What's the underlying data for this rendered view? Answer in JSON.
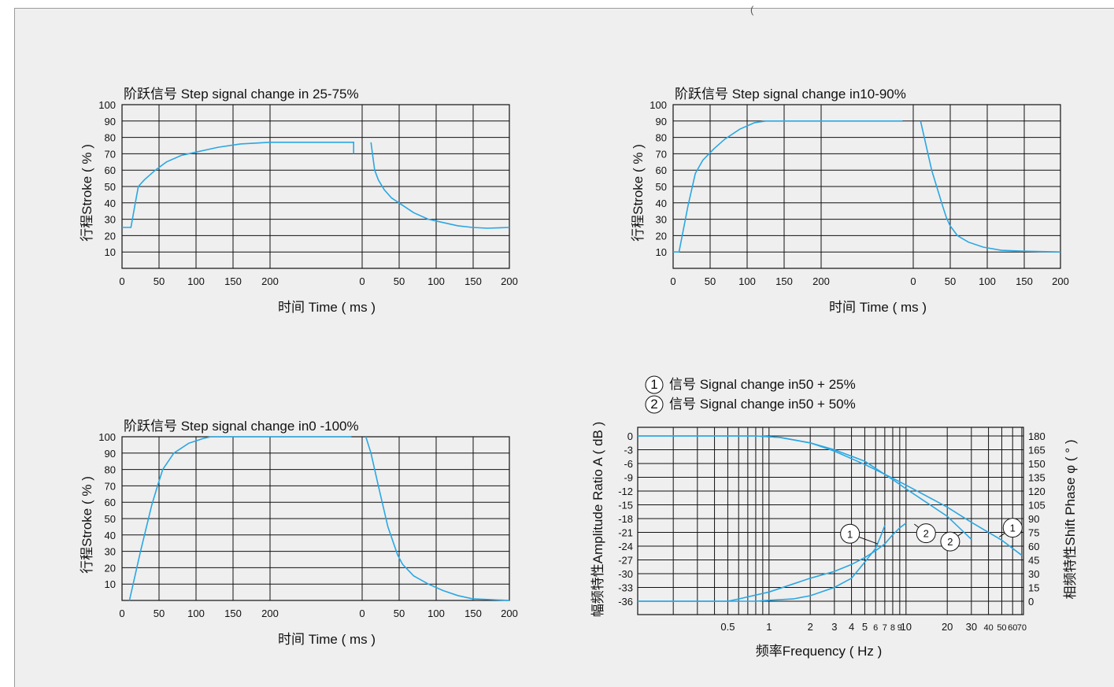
{
  "header_fragment": "(",
  "chart_data": [
    {
      "type": "line",
      "title": "阶跃信号 Step signal change in 25-75%",
      "xlabel": "时间 Time ( ms )",
      "ylabel": "行程Stroke ( % )",
      "ylim": [
        0,
        100
      ],
      "ytick_labels": [
        "10",
        "20",
        "30",
        "40",
        "50",
        "60",
        "70",
        "80",
        "90",
        "100"
      ],
      "xtick_labels": [
        "0",
        "50",
        "100",
        "150",
        "200",
        "0",
        "50",
        "100",
        "150",
        "200"
      ],
      "x_segments": [
        [
          0,
          200
        ],
        [
          0,
          200
        ]
      ],
      "grid": true,
      "series": [
        {
          "segment": 0,
          "points": [
            [
              0,
              25
            ],
            [
              12,
              25
            ],
            [
              18,
              40
            ],
            [
              22,
              50
            ],
            [
              30,
              54
            ],
            [
              45,
              60
            ],
            [
              60,
              65
            ],
            [
              80,
              69
            ],
            [
              100,
              71
            ],
            [
              130,
              74
            ],
            [
              160,
              76
            ],
            [
              200,
              77
            ],
            [
              300,
              77
            ],
            [
              313,
              77
            ],
            [
              313,
              70
            ]
          ]
        },
        {
          "segment": 1,
          "points": [
            [
              12,
              77
            ],
            [
              14,
              70
            ],
            [
              17,
              60
            ],
            [
              22,
              54
            ],
            [
              30,
              48
            ],
            [
              40,
              43
            ],
            [
              50,
              40
            ],
            [
              70,
              34
            ],
            [
              90,
              30
            ],
            [
              110,
              28
            ],
            [
              130,
              26
            ],
            [
              150,
              25
            ],
            [
              170,
              24.5
            ],
            [
              200,
              25
            ]
          ]
        }
      ]
    },
    {
      "type": "line",
      "title": "阶跃信号 Step signal change in10-90%",
      "xlabel": "时间 Time ( ms )",
      "ylabel": "行程Stroke ( % )",
      "ylim": [
        0,
        100
      ],
      "ytick_labels": [
        "10",
        "20",
        "30",
        "40",
        "50",
        "60",
        "70",
        "80",
        "90",
        "100"
      ],
      "xtick_labels": [
        "0",
        "50",
        "100",
        "150",
        "200",
        "0",
        "50",
        "100",
        "150",
        "200"
      ],
      "x_segments": [
        [
          0,
          200
        ],
        [
          0,
          200
        ]
      ],
      "grid": true,
      "series": [
        {
          "segment": 0,
          "points": [
            [
              0,
              10
            ],
            [
              8,
              10
            ],
            [
              20,
              38
            ],
            [
              30,
              58
            ],
            [
              40,
              66
            ],
            [
              55,
              73
            ],
            [
              70,
              79
            ],
            [
              90,
              85
            ],
            [
              110,
              89
            ],
            [
              125,
              90
            ],
            [
              200,
              90
            ],
            [
              300,
              90
            ],
            [
              310,
              90
            ]
          ]
        },
        {
          "segment": 1,
          "points": [
            [
              10,
              90
            ],
            [
              15,
              80
            ],
            [
              25,
              60
            ],
            [
              40,
              38
            ],
            [
              45,
              31
            ],
            [
              50,
              26
            ],
            [
              60,
              20
            ],
            [
              75,
              16
            ],
            [
              95,
              13
            ],
            [
              120,
              11
            ],
            [
              150,
              10.5
            ],
            [
              200,
              10
            ]
          ]
        }
      ]
    },
    {
      "type": "line",
      "title": "阶跃信号 Step signal change in0 -100%",
      "xlabel": "时间 Time ( ms )",
      "ylabel": "行程Stroke ( % )",
      "ylim": [
        0,
        100
      ],
      "ytick_labels": [
        "10",
        "20",
        "30",
        "40",
        "50",
        "60",
        "70",
        "80",
        "90",
        "100"
      ],
      "xtick_labels": [
        "0",
        "50",
        "100",
        "150",
        "200",
        "0",
        "50",
        "100",
        "150",
        "200"
      ],
      "x_segments": [
        [
          0,
          200
        ],
        [
          0,
          200
        ]
      ],
      "grid": true,
      "series": [
        {
          "segment": 0,
          "points": [
            [
              10,
              0
            ],
            [
              25,
              30
            ],
            [
              40,
              58
            ],
            [
              48,
              70
            ],
            [
              55,
              80
            ],
            [
              70,
              90
            ],
            [
              90,
              96
            ],
            [
              110,
              99
            ],
            [
              120,
              100
            ],
            [
              200,
              100
            ],
            [
              300,
              100
            ],
            [
              310,
              100
            ]
          ]
        },
        {
          "segment": 1,
          "points": [
            [
              5,
              100
            ],
            [
              12,
              90
            ],
            [
              22,
              70
            ],
            [
              35,
              45
            ],
            [
              48,
              28
            ],
            [
              55,
              22
            ],
            [
              70,
              15
            ],
            [
              90,
              10
            ],
            [
              110,
              6
            ],
            [
              130,
              3
            ],
            [
              150,
              1
            ],
            [
              200,
              0
            ]
          ]
        }
      ]
    },
    {
      "type": "line",
      "legend": [
        "信号 Signal change in50 + 25%",
        "信号 Signal change in50 + 50%"
      ],
      "legend_markers": [
        "1",
        "2"
      ],
      "xlabel": "频率Frequency ( Hz )",
      "ylabel_left": "幅频特性Amplitude Ratio A ( dB )",
      "ylabel_right": "相频特性Shift Phase φ ( ° )",
      "x_scale": "log",
      "xlim": [
        0.11,
        72
      ],
      "xtick_labels": [
        "0.5",
        "1",
        "2",
        "3",
        "4",
        "5",
        "6",
        "7",
        "8",
        "9",
        "10",
        "20",
        "30",
        "40",
        "50",
        "60",
        "70"
      ],
      "xtick_values": [
        0.5,
        1,
        2,
        3,
        4,
        5,
        6,
        7,
        8,
        9,
        10,
        20,
        30,
        40,
        50,
        60,
        70
      ],
      "ylim_left": [
        -39,
        0
      ],
      "ytick_labels_left": [
        "0",
        "-3",
        "-6",
        "-9",
        "-12",
        "-15",
        "-18",
        "-21",
        "-24",
        "-27",
        "-30",
        "-33",
        "-36"
      ],
      "ytick_labels_right": [
        "180",
        "165",
        "150",
        "135",
        "120",
        "105",
        "90",
        "75",
        "60",
        "45",
        "30",
        "15",
        "0"
      ],
      "grid": true,
      "series": [
        {
          "name": "1",
          "kind": "amplitude",
          "points": [
            [
              0.11,
              0
            ],
            [
              0.8,
              0
            ],
            [
              1.2,
              -0.3
            ],
            [
              2,
              -1.5
            ],
            [
              3,
              -3.3
            ],
            [
              5,
              -6.2
            ],
            [
              8,
              -9.2
            ],
            [
              10,
              -10.7
            ],
            [
              20,
              -15.5
            ],
            [
              30,
              -18.8
            ],
            [
              50,
              -22.7
            ],
            [
              70,
              -26
            ]
          ]
        },
        {
          "name": "2",
          "kind": "amplitude",
          "points": [
            [
              0.11,
              0
            ],
            [
              0.8,
              0
            ],
            [
              1.2,
              -0.3
            ],
            [
              2,
              -1.5
            ],
            [
              3,
              -3
            ],
            [
              5,
              -5.5
            ],
            [
              8,
              -9.5
            ],
            [
              10,
              -11.5
            ],
            [
              20,
              -17.5
            ],
            [
              30,
              -22.5
            ]
          ]
        },
        {
          "name": "1",
          "kind": "phase",
          "points": [
            [
              0.11,
              -36
            ],
            [
              0.5,
              -36
            ],
            [
              0.6,
              -35.5
            ],
            [
              1,
              -34
            ],
            [
              2,
              -31
            ],
            [
              3,
              -29.5
            ],
            [
              4,
              -28
            ],
            [
              5,
              -26.5
            ],
            [
              6,
              -25
            ],
            [
              7,
              -23.5
            ],
            [
              8,
              -21.5
            ],
            [
              9,
              -20
            ],
            [
              10,
              -19
            ]
          ]
        },
        {
          "name": "2",
          "kind": "phase",
          "points": [
            [
              0.11,
              -36
            ],
            [
              0.5,
              -36
            ],
            [
              0.8,
              -36
            ],
            [
              1,
              -35.8
            ],
            [
              1.5,
              -35.5
            ],
            [
              2,
              -34.8
            ],
            [
              3,
              -33
            ],
            [
              4,
              -31
            ],
            [
              5,
              -27.5
            ],
            [
              6,
              -24.5
            ],
            [
              6.5,
              -22
            ],
            [
              7,
              -19.5
            ]
          ]
        }
      ],
      "markers": [
        {
          "label": "1",
          "x": 3.9,
          "y": -21.3,
          "line_to": [
            6.2,
            -23.5
          ]
        },
        {
          "label": "2",
          "x": 14,
          "y": -21.2,
          "line_to": [
            11.5,
            -19.2
          ]
        },
        {
          "label": "2",
          "x": 21,
          "y": -23,
          "line_to": [
            26,
            -21
          ]
        },
        {
          "label": "1",
          "x": 60,
          "y": -20,
          "line_to": [
            48,
            -22
          ]
        }
      ]
    }
  ]
}
